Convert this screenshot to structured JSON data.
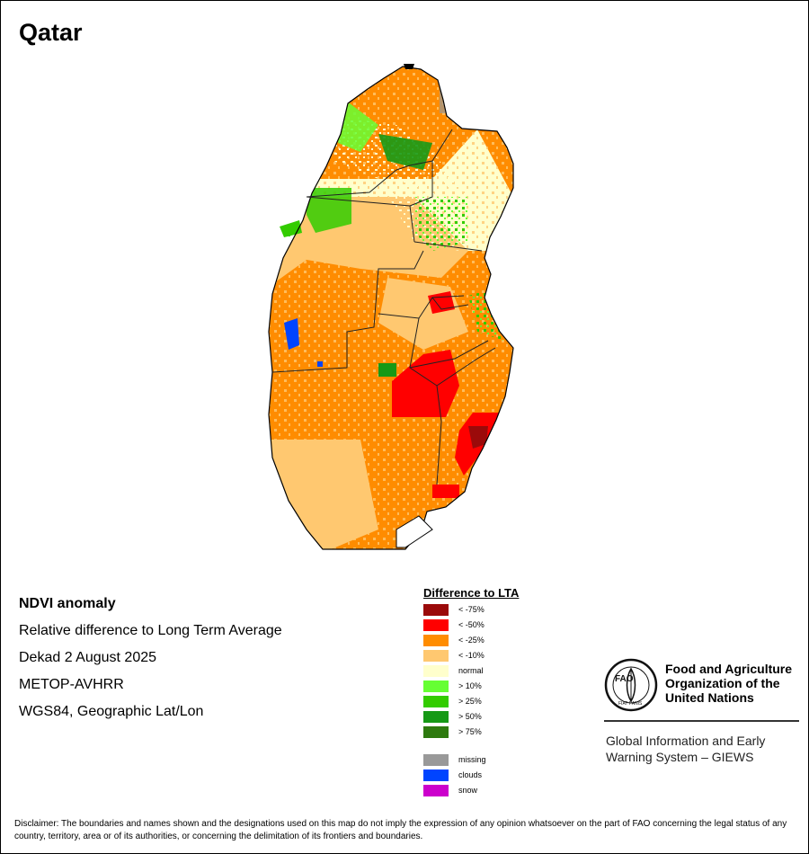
{
  "title": "Qatar",
  "info": {
    "line1": "NDVI anomaly",
    "line2": "Relative difference to Long Term Average",
    "line3": "Dekad 2 August 2025",
    "line4": "METOP-AVHRR",
    "line5": "WGS84, Geographic Lat/Lon"
  },
  "legend": {
    "title": "Difference to LTA",
    "items": [
      {
        "label": "< -75%",
        "color": "#9b0a0a"
      },
      {
        "label": "< -50%",
        "color": "#ff0000"
      },
      {
        "label": "< -25%",
        "color": "#ff8c00"
      },
      {
        "label": "< -10%",
        "color": "#ffc870"
      },
      {
        "label": "normal",
        "color": "#ffffcc"
      },
      {
        "label": "> 10%",
        "color": "#66ff33"
      },
      {
        "label": "> 25%",
        "color": "#33cc00"
      },
      {
        "label": "> 50%",
        "color": "#169916"
      },
      {
        "label": "> 75%",
        "color": "#2e7a0f"
      }
    ],
    "extras": [
      {
        "label": "missing",
        "color": "#999999"
      },
      {
        "label": "clouds",
        "color": "#0044ff"
      },
      {
        "label": "snow",
        "color": "#cc00cc"
      }
    ]
  },
  "logo": {
    "letters": "FAO",
    "motto": "FIAT PANIS",
    "name_line1": "Food and Agriculture",
    "name_line2": "Organization of the",
    "name_line3": "United Nations",
    "giews_line1": "Global Information and Early",
    "giews_line2": "Warning System – GIEWS"
  },
  "disclaimer": "Disclaimer: The boundaries and names shown and the designations used on this map do not imply the expression of any opinion whatsoever on the part of FAO concerning the legal status of any country, territory, area or of its authorities, or concerning the delimitation of its frontiers and boundaries.",
  "colors": {
    "border": "#000000",
    "boundary": "#222222"
  }
}
